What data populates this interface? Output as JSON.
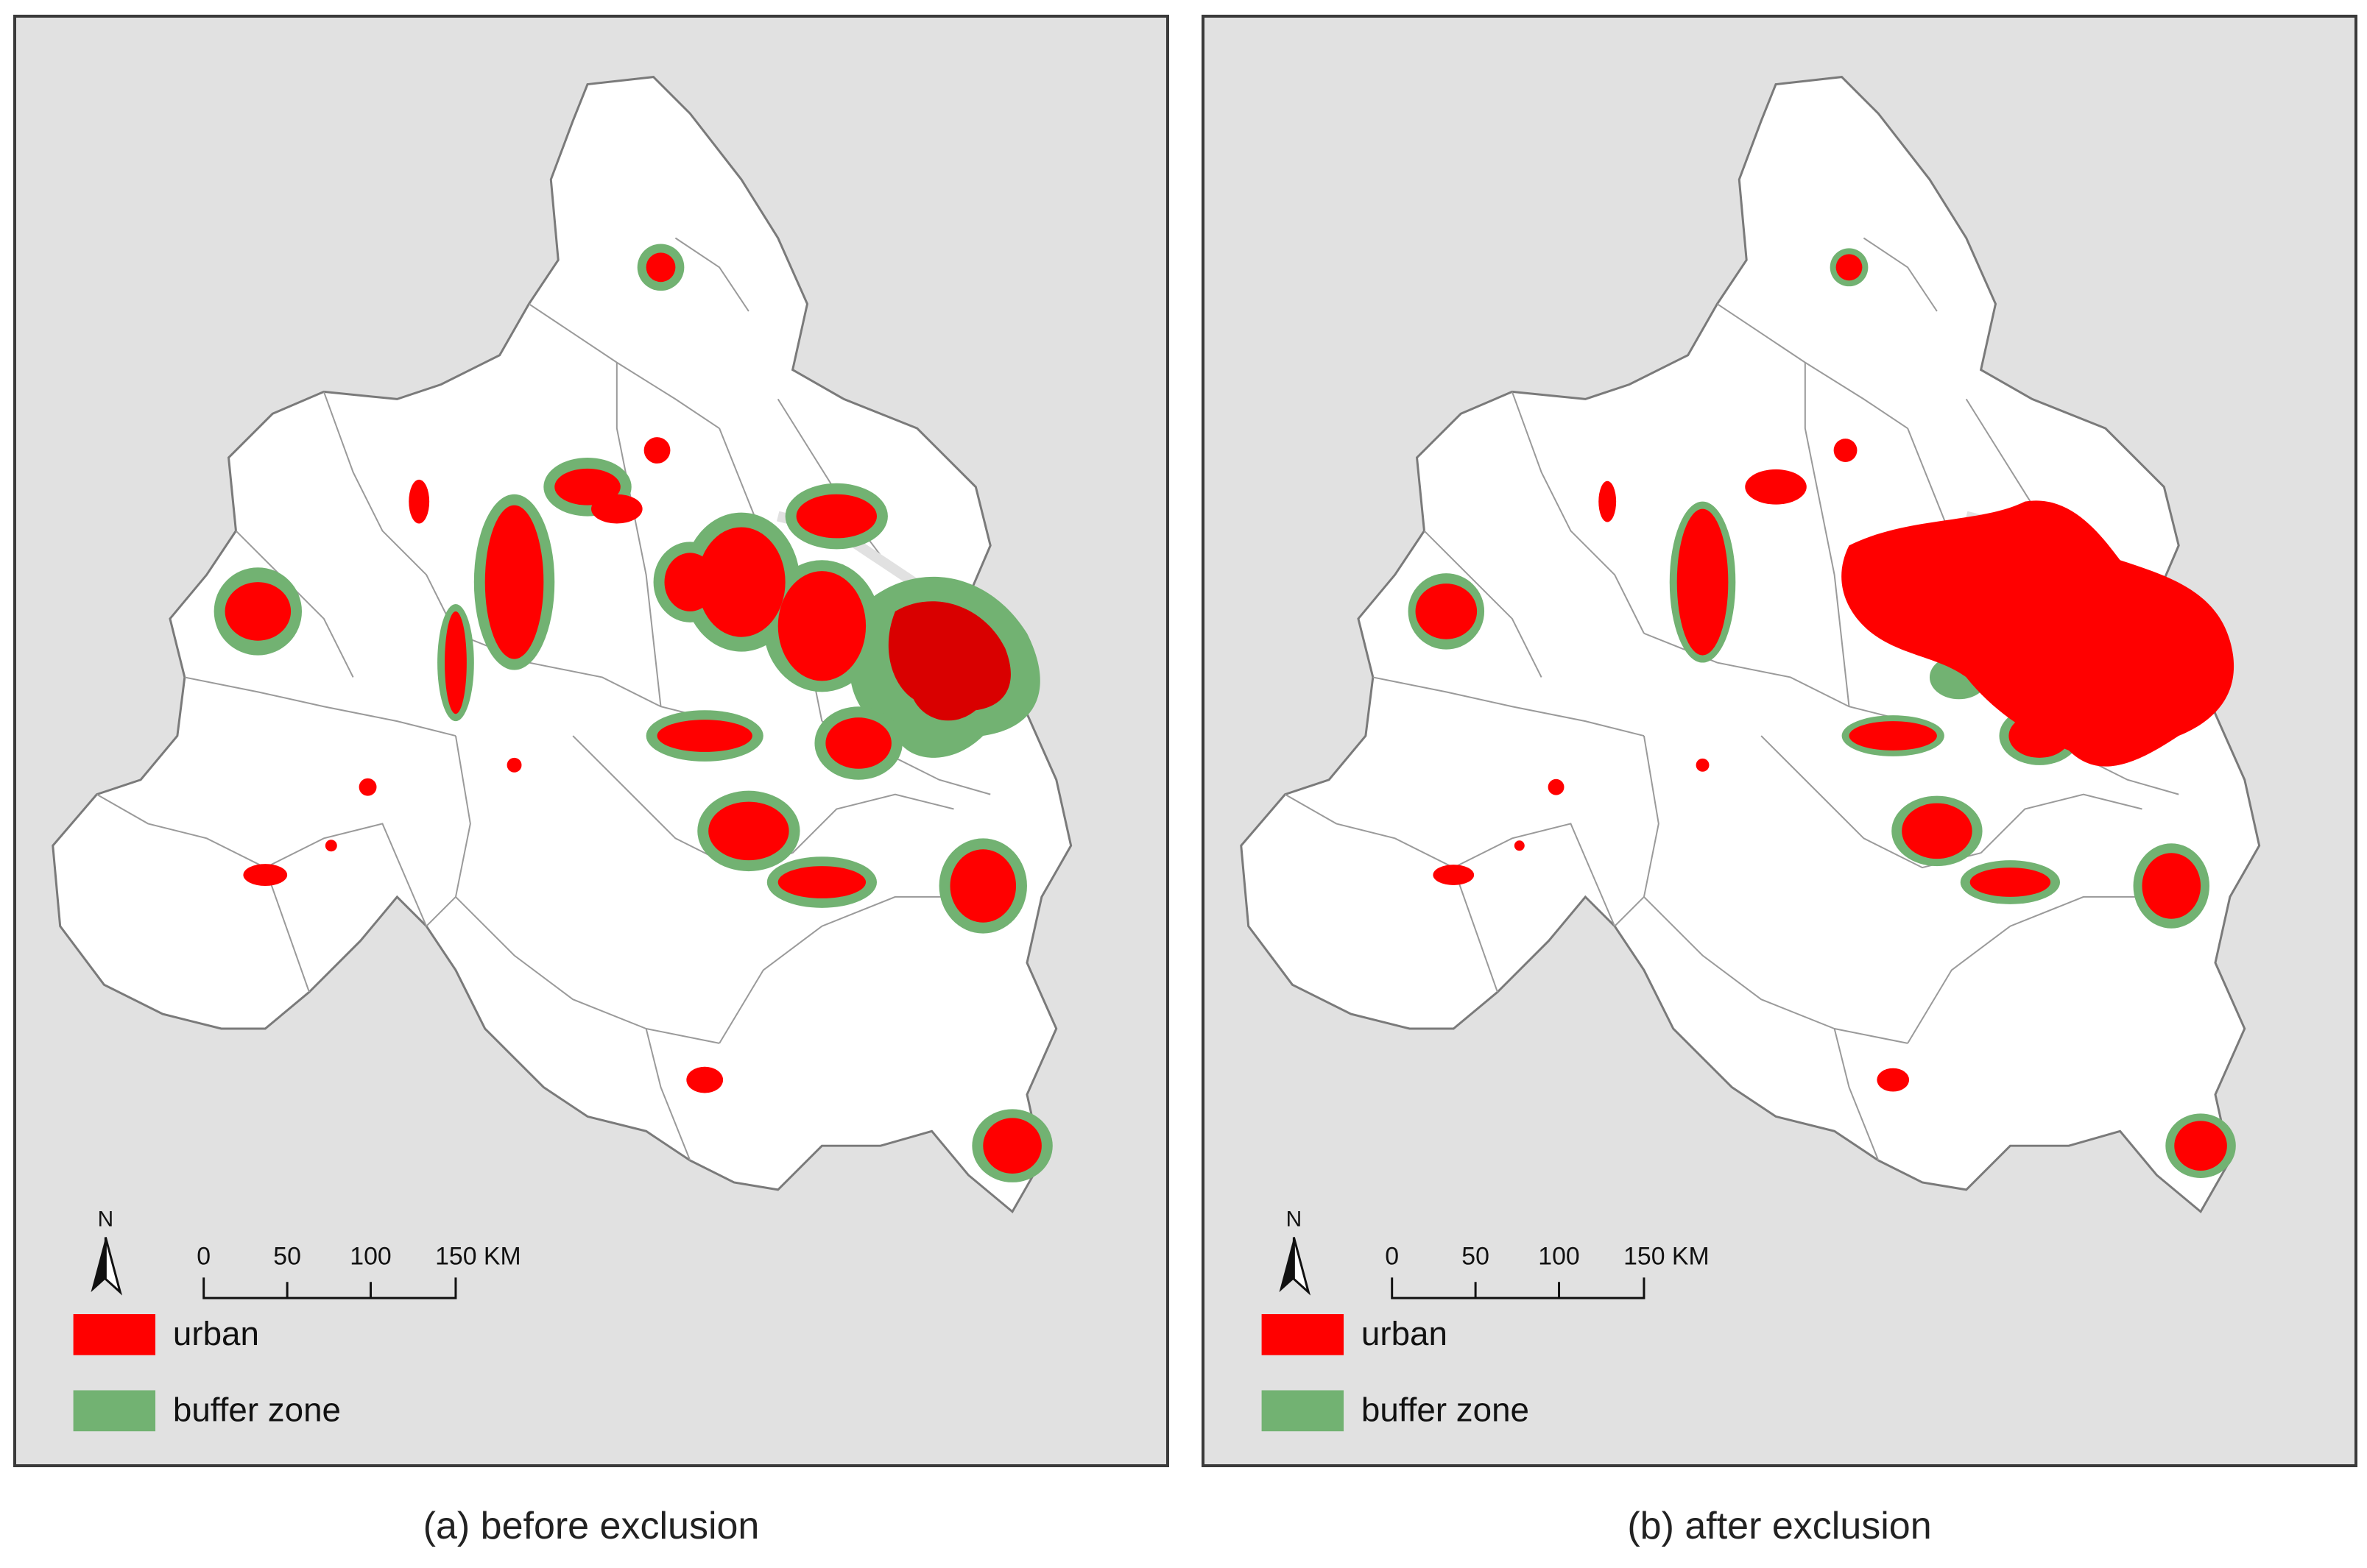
{
  "panels": [
    {
      "id": "a",
      "caption": "(a) before exclusion",
      "north_label": "N",
      "scale_ticks": [
        "0",
        "50",
        "100",
        "150 KM"
      ],
      "legend": [
        {
          "label": "urban",
          "color": "#ff0000"
        },
        {
          "label": "buffer zone",
          "color": "#72b272"
        }
      ]
    },
    {
      "id": "b",
      "caption": "(b) after exclusion",
      "north_label": "N",
      "scale_ticks": [
        "0",
        "50",
        "100",
        "150 KM"
      ],
      "legend": [
        {
          "label": "urban",
          "color": "#ff0000"
        },
        {
          "label": "buffer zone",
          "color": "#72b272"
        }
      ]
    }
  ],
  "colors": {
    "background": "#e1e1e1",
    "land": "#ffffff",
    "boundary": "#7a7a7a",
    "urban": "#ff0000",
    "urban_dark": "#d90000",
    "buffer": "#72b272",
    "river": "#e1e1e1"
  }
}
